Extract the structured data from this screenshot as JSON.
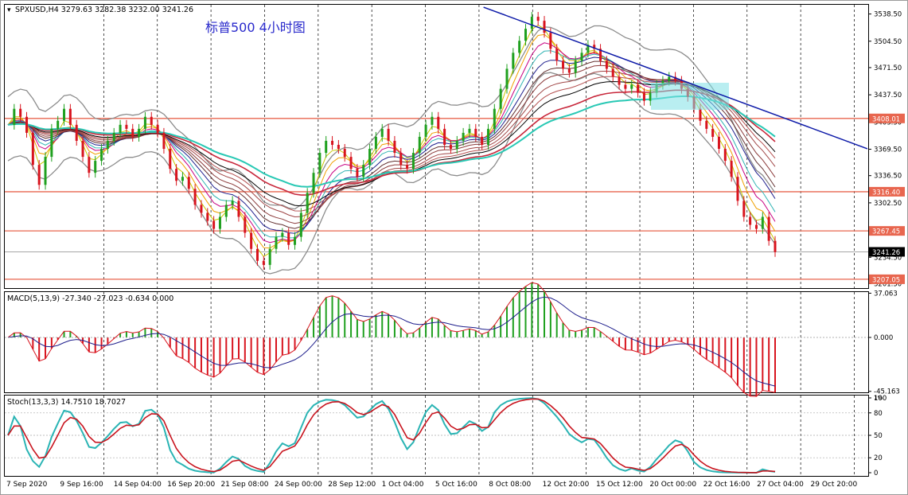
{
  "chart_data": {
    "type": "line",
    "header": {
      "symbol": "SPXUSD,H4",
      "open": "3279.63",
      "high": "3282.38",
      "low": "3232.00",
      "close": "3241.26"
    },
    "annotation": "标普500  4小时图",
    "x_labels": [
      "7 Sep 2020",
      "9 Sep 16:00",
      "14 Sep 04:00",
      "16 Sep 20:00",
      "21 Sep 08:00",
      "24 Sep 00:00",
      "28 Sep 12:00",
      "1 Oct 04:00",
      "5 Oct 16:00",
      "8 Oct 08:00",
      "12 Oct 20:00",
      "15 Oct 12:00",
      "20 Oct 00:00",
      "22 Oct 16:00",
      "27 Oct 04:00",
      "29 Oct 20:00"
    ],
    "price_ticks": [
      "3538.50",
      "3504.50",
      "3471.50",
      "3437.50",
      "3403.50",
      "3369.50",
      "3336.50",
      "3302.50",
      "3234.50",
      "3201.50"
    ],
    "price_range": [
      3196,
      3550
    ],
    "levels": [
      {
        "label": "3408.01",
        "value": 3408.01,
        "color": "#e8664f"
      },
      {
        "label": "3316.40",
        "value": 3316.4,
        "color": "#e8664f"
      },
      {
        "label": "3267.45",
        "value": 3267.45,
        "color": "#e8664f"
      },
      {
        "label": "3207.05",
        "value": 3207.05,
        "color": "#e8664f"
      }
    ],
    "current_price": {
      "label": "3241.26",
      "value": 3241.26
    },
    "trendline": {
      "from": [
        0.555,
        3547
      ],
      "to": [
        1.0,
        3390
      ],
      "color": "#0d1aa8"
    },
    "closes": [
      3400,
      3420,
      3410,
      3390,
      3350,
      3325,
      3360,
      3395,
      3405,
      3420,
      3400,
      3380,
      3360,
      3340,
      3355,
      3370,
      3380,
      3390,
      3400,
      3395,
      3385,
      3395,
      3410,
      3400,
      3390,
      3370,
      3345,
      3330,
      3335,
      3320,
      3300,
      3290,
      3280,
      3270,
      3285,
      3300,
      3305,
      3285,
      3265,
      3245,
      3230,
      3225,
      3245,
      3260,
      3265,
      3250,
      3260,
      3290,
      3315,
      3340,
      3365,
      3380,
      3375,
      3370,
      3360,
      3345,
      3335,
      3350,
      3370,
      3385,
      3395,
      3380,
      3365,
      3350,
      3345,
      3365,
      3385,
      3400,
      3410,
      3395,
      3375,
      3370,
      3380,
      3390,
      3395,
      3385,
      3375,
      3395,
      3420,
      3445,
      3470,
      3490,
      3505,
      3520,
      3535,
      3530,
      3515,
      3495,
      3480,
      3470,
      3465,
      3480,
      3490,
      3500,
      3495,
      3480,
      3470,
      3460,
      3450,
      3445,
      3450,
      3440,
      3430,
      3440,
      3450,
      3455,
      3460,
      3455,
      3445,
      3435,
      3420,
      3405,
      3395,
      3385,
      3370,
      3355,
      3335,
      3305,
      3285,
      3275,
      3270,
      3285,
      3255,
      3241
    ],
    "macd": {
      "label": "MACD(5,13,9) -27.340 -27.023 -0.634 0.000",
      "ticks": [
        "37.063",
        "0.000",
        "-45.163"
      ],
      "range": [
        -46,
        38
      ]
    },
    "stoch": {
      "label": "Stoch(13,3,3) 14.7510 18.7027",
      "ticks": [
        "100",
        "80",
        "50",
        "20",
        "0"
      ],
      "extra_tick": "1% ",
      "range": [
        0,
        100
      ]
    }
  }
}
